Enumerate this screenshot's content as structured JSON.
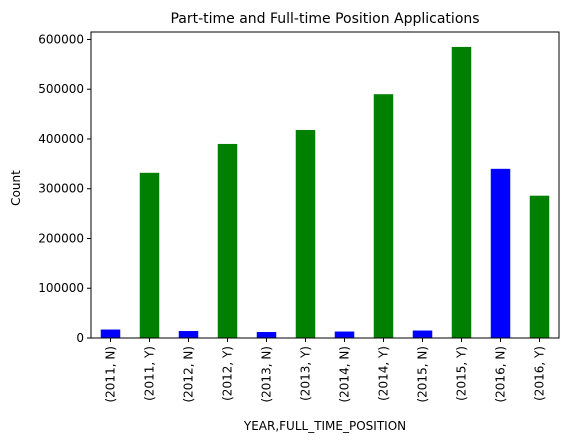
{
  "chart_data": {
    "type": "bar",
    "title": "Part-time and Full-time Position Applications",
    "xlabel": "YEAR,FULL_TIME_POSITION",
    "ylabel": "Count",
    "ylim": [
      0,
      615000
    ],
    "yticks": [
      0,
      100000,
      200000,
      300000,
      400000,
      500000,
      600000
    ],
    "grid": false,
    "categories": [
      "(2011, N)",
      "(2011, Y)",
      "(2012, N)",
      "(2012, Y)",
      "(2013, N)",
      "(2013, Y)",
      "(2014, N)",
      "(2014, Y)",
      "(2015, N)",
      "(2015, Y)",
      "(2016, N)",
      "(2016, Y)"
    ],
    "values": [
      17000,
      332000,
      14000,
      390000,
      12000,
      418000,
      13000,
      490000,
      15000,
      585000,
      340000,
      286000
    ],
    "bar_colors": [
      "#0000ff",
      "#008000",
      "#0000ff",
      "#008000",
      "#0000ff",
      "#008000",
      "#0000ff",
      "#008000",
      "#0000ff",
      "#008000",
      "#0000ff",
      "#008000"
    ]
  }
}
